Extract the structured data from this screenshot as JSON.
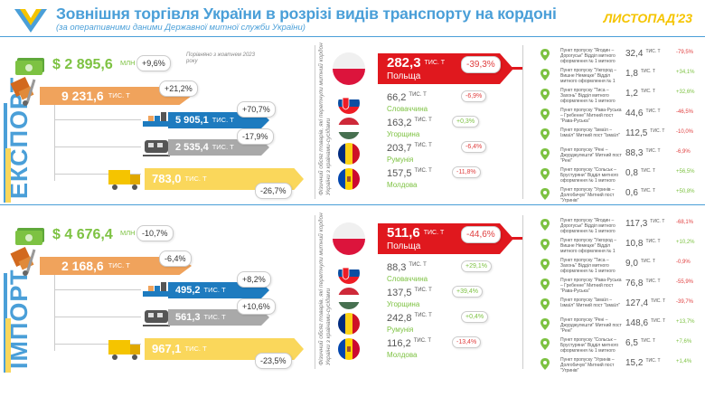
{
  "header": {
    "title": "Зовнішня торгівля України в розрізі видів транспорту на кордоні",
    "subtitle": "(за оперативними даними Державної митної служби України)",
    "period": "ЛИСТОПАД'23",
    "accent": "#4a9fd8"
  },
  "export": {
    "label": "ЕКСПОРТ",
    "value_usd": "$ 2 895,6",
    "value_usd_unit": "МЛН",
    "value_usd_pct": "+9,6%",
    "note": "Порівняно з жовтнем 2023 року",
    "total_tonnes": "9 231,6",
    "total_unit": "ТИС. Т",
    "total_pct": "+21,2%",
    "sea": {
      "value": "5 905,1",
      "unit": "ТИС. Т",
      "pct": "+70,7%"
    },
    "rail": {
      "value": "2 535,4",
      "unit": "ТИС. Т",
      "pct": "-17,9%"
    },
    "road": {
      "value": "783,0",
      "unit": "ТИС. Т",
      "pct": "-26,7%"
    },
    "vert_note": "Фізичний обсяг товарів, які перетнули митний кордон України з країнами-сусідами",
    "countries": [
      {
        "name": "Польща",
        "value": "282,3",
        "unit": "ТИС. Т",
        "pct": "-39,3%"
      },
      {
        "name": "Словаччина",
        "value": "66,2",
        "unit": "ТИС. Т",
        "pct": "-6,9%"
      },
      {
        "name": "Угорщина",
        "value": "163,2",
        "unit": "ТИС. Т",
        "pct": "+0,3%"
      },
      {
        "name": "Румунія",
        "value": "203,7",
        "unit": "ТИС. Т",
        "pct": "-6,4%"
      },
      {
        "name": "Молдова",
        "value": "157,5",
        "unit": "ТИС. Т",
        "pct": "-11,8%"
      }
    ],
    "points": [
      {
        "name": "Пункт пропуску \"Ягодин – Дорогуськ\" Відділ митного оформлення № 1 митного поста \"Ягодин\"",
        "value": "32,4",
        "unit": "ТИС. Т",
        "pct": "-79,5%"
      },
      {
        "name": "Пункт пропуску \"Ужгород – Вишне Немецке\" Відділ митного оформлення № 1 митного поста \"Ужгород\"",
        "value": "1,8",
        "unit": "ТИС. Т",
        "pct": "+34,1%"
      },
      {
        "name": "Пункт пропуску \"Тиса – Захонь\" Відділ митного оформлення № 1 митного поста \"Чоп\"",
        "value": "1,2",
        "unit": "ТИС. Т",
        "pct": "+32,6%"
      },
      {
        "name": "Пункт пропуску \"Рава-Руська – Гребенне\" Митний пост \"Рава-Руська\"",
        "value": "44,6",
        "unit": "ТИС. Т",
        "pct": "-46,5%"
      },
      {
        "name": "Пункт пропуску \"Ізмаїл – Ізмаїл\" Митний пост \"Ізмаїл\"",
        "value": "112,5",
        "unit": "ТИС. Т",
        "pct": "-10,0%"
      },
      {
        "name": "Пункт пропуску \"Рені – Джурджулешти\" Митний пост \"Рені\"",
        "value": "88,3",
        "unit": "ТИС. Т",
        "pct": "-6,9%"
      },
      {
        "name": "Пункт пропуску \"Сольськ – Брустуряни\" Відділ митного оформлення № 1 митного поста \"Рені\"",
        "value": "0,8",
        "unit": "ТИС. Т",
        "pct": "+56,5%"
      },
      {
        "name": "Пункт пропуску \"Угринів – Долгобичув\" Митний пост \"Угринів\"",
        "value": "0,6",
        "unit": "ТИС. Т",
        "pct": "+50,8%"
      }
    ]
  },
  "import": {
    "label": "ІМПОРТ",
    "value_usd": "$ 4 676,4",
    "value_usd_unit": "МЛН",
    "value_usd_pct": "-10,7%",
    "total_tonnes": "2 168,6",
    "total_unit": "ТИС. Т",
    "total_pct": "-6,4%",
    "sea": {
      "value": "495,2",
      "unit": "ТИС. Т",
      "pct": "+8,2%"
    },
    "rail": {
      "value": "561,3",
      "unit": "ТИС. Т",
      "pct": "+10,6%"
    },
    "road": {
      "value": "967,1",
      "unit": "ТИС. Т",
      "pct": "-23,5%"
    },
    "vert_note": "Фізичний обсяг товарів, які перетнули митний кордон України з країнами-сусідами",
    "countries": [
      {
        "name": "Польща",
        "value": "511,6",
        "unit": "ТИС. Т",
        "pct": "-44,6%"
      },
      {
        "name": "Словаччина",
        "value": "88,3",
        "unit": "ТИС. Т",
        "pct": "+29,1%"
      },
      {
        "name": "Угорщина",
        "value": "137,5",
        "unit": "ТИС. Т",
        "pct": "+39,4%"
      },
      {
        "name": "Румунія",
        "value": "242,8",
        "unit": "ТИС. Т",
        "pct": "+0,4%"
      },
      {
        "name": "Молдова",
        "value": "116,2",
        "unit": "ТИС. Т",
        "pct": "-13,4%"
      }
    ],
    "points": [
      {
        "name": "Пункт пропуску \"Ягодин – Дорогуськ\" Відділ митного оформлення № 1 митного поста \"Ягодин\"",
        "value": "117,3",
        "unit": "ТИС. Т",
        "pct": "-68,1%"
      },
      {
        "name": "Пункт пропуску \"Ужгород – Вишне Немецке\" Відділ митного оформлення № 1 митного поста \"Ужгород\"",
        "value": "10,8",
        "unit": "ТИС. Т",
        "pct": "+10,2%"
      },
      {
        "name": "Пункт пропуску \"Тиса – Захонь\" Відділ митного оформлення № 1 митного поста \"Чоп\"",
        "value": "9,0",
        "unit": "ТИС. Т",
        "pct": "-0,9%"
      },
      {
        "name": "Пункт пропуску \"Рава-Руська – Гребенне\" Митний пост \"Рава-Руська\"",
        "value": "76,8",
        "unit": "ТИС. Т",
        "pct": "-55,9%"
      },
      {
        "name": "Пункт пропуску \"Ізмаїл – Ізмаїл\" Митний пост \"Ізмаїл\"",
        "value": "127,4",
        "unit": "ТИС. Т",
        "pct": "-39,7%"
      },
      {
        "name": "Пункт пропуску \"Рені – Джурджулешти\" Митний пост \"Рені\"",
        "value": "148,6",
        "unit": "ТИС. Т",
        "pct": "+13,7%"
      },
      {
        "name": "Пункт пропуску \"Сольськ – Брустуряни\" Відділ митного оформлення № 1 митного поста \"Рені\"",
        "value": "6,5",
        "unit": "ТИС. Т",
        "pct": "+7,6%"
      },
      {
        "name": "Пункт пропуску \"Угринів – Долгобичув\" Митний пост \"Угринів\"",
        "value": "15,2",
        "unit": "ТИС. Т",
        "pct": "+1,4%"
      }
    ]
  }
}
